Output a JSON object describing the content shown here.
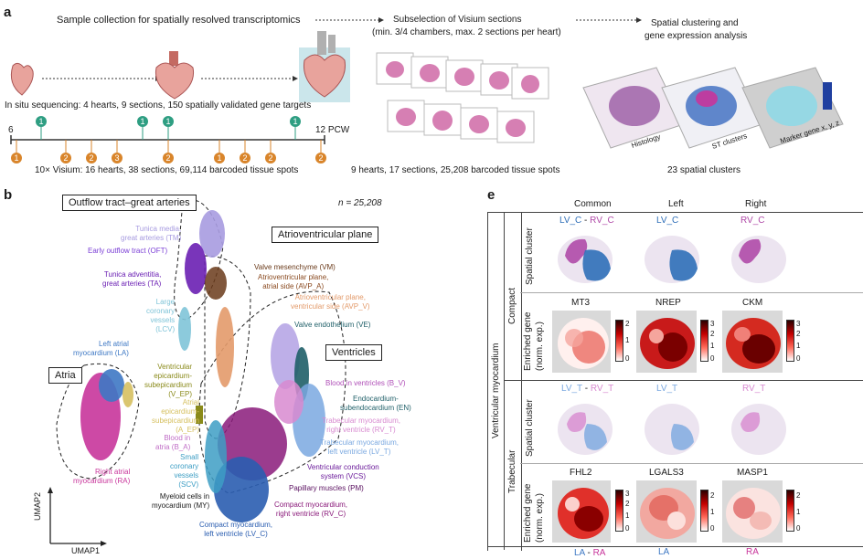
{
  "panel_a": {
    "letter": "a",
    "step1": "Sample collection for spatially resolved transcriptomics",
    "step2_line1": "Subselection of Visium sections",
    "step2_line2": "(min. 3/4 chambers, max. 2 sections per heart)",
    "step3_line1": "Spatial clustering and",
    "step3_line2": "gene expression analysis",
    "insitu": "In situ sequencing: 4 hearts, 9 sections, 150 spatially validated gene targets",
    "timeline_start": "6",
    "timeline_end": "12 PCW",
    "green_marks": [
      "1",
      "1",
      "1",
      "1"
    ],
    "orange_marks_top": [
      "1"
    ],
    "orange_marks_bottom": [
      "2",
      "2",
      "3",
      "2",
      "1",
      "2",
      "2",
      "2"
    ],
    "visium": "10× Visium: 16 hearts, 38 sections, 69,114 barcoded tissue spots",
    "subset": "9 hearts, 17 sections, 25,208 barcoded tissue spots",
    "clusters": "23 spatial clusters",
    "stack_labels": [
      "Histology",
      "ST clusters",
      "Marker gene x, y, z"
    ],
    "colors": {
      "green": "#2e9e82",
      "orange": "#d9852b",
      "heart": "#e8a39c",
      "vessel": "#a9d6dd"
    }
  },
  "panel_b": {
    "letter": "b",
    "n_label": "n = 25,208",
    "xaxis": "UMAP1",
    "yaxis": "UMAP2",
    "boxes": [
      "Outflow tract–great arteries",
      "Atrioventricular plane",
      "Ventricles",
      "Atria"
    ],
    "labels": [
      {
        "text": "Tunica media,\ngreat arteries (TM)",
        "color": "#a79be0"
      },
      {
        "text": "Early outflow tract (OFT)",
        "color": "#7b3fd6"
      },
      {
        "text": "Tunica adventitia,\ngreat arteries (TA)",
        "color": "#6a1fb3"
      },
      {
        "text": "Large\ncoronary\nvessels\n(LCV)",
        "color": "#7fc4d8"
      },
      {
        "text": "Left atrial\nmyocardium (LA)",
        "color": "#3e78c4"
      },
      {
        "text": "Valve mesenchyme (VM)",
        "color": "#6a3a1a"
      },
      {
        "text": "Atrioventricular plane,\natrial side (AVP_A)",
        "color": "#8a4a20"
      },
      {
        "text": "Atrioventricular plane,\nventricular side (AVP_V)",
        "color": "#e39a6a"
      },
      {
        "text": "Valve endothelium (VE)",
        "color": "#1f5f68"
      },
      {
        "text": "Ventricular\nepicardium-\nsubepicardium\n(V_EP)",
        "color": "#8a8a1a"
      },
      {
        "text": "Atrial\nepicardium-\nsubepicardium\n(A_EP)",
        "color": "#d6c060"
      },
      {
        "text": "Blood in\natria (B_A)",
        "color": "#c06ec6"
      },
      {
        "text": "Small\ncoronary\nvessels\n(SCV)",
        "color": "#3d9ec4"
      },
      {
        "text": "Right atrial\nmyocardium (RA)",
        "color": "#c8359b"
      },
      {
        "text": "Myeloid cells in\nmyocardium (MY)",
        "color": "#1a1a1a"
      },
      {
        "text": "Compact myocardium,\nleft ventricle (LV_C)",
        "color": "#2a5db0"
      },
      {
        "text": "Compact myocardium,\nright ventricle (RV_C)",
        "color": "#8a1a7a"
      },
      {
        "text": "Papillary muscles (PM)",
        "color": "#5a1060"
      },
      {
        "text": "Ventricular conduction\nsystem (VCS)",
        "color": "#6a1a9a"
      },
      {
        "text": "Trabecular myocardium,\nleft ventricle (LV_T)",
        "color": "#7aa8e0"
      },
      {
        "text": "Trabecular myocardium,\nright ventricle (RV_T)",
        "color": "#d88ad0"
      },
      {
        "text": "Endocardium-\nsubendocardium (EN)",
        "color": "#1f5f68"
      },
      {
        "text": "Blood in ventricles (B_V)",
        "color": "#b050b8"
      }
    ]
  },
  "panel_e": {
    "letter": "e",
    "col_headers": [
      "Common",
      "Left",
      "Right"
    ],
    "outer_label": "Ventricular myocardium",
    "group_compact": "Compact",
    "group_trabecular": "Trabecular",
    "row_spatial": "Spatial cluster",
    "row_enriched_1": "Enriched gene",
    "row_enriched_2": "(norm. exp.)",
    "compact_titles": [
      {
        "a": "LV_C",
        "sep": " - ",
        "b": "RV_C"
      },
      {
        "a": "LV_C",
        "sep": "",
        "b": ""
      },
      {
        "a": "",
        "sep": "",
        "b": "RV_C"
      }
    ],
    "compact_genes": [
      "MT3",
      "NREP",
      "CKM"
    ],
    "compact_ticks": [
      [
        "2",
        "1",
        "0"
      ],
      [
        "3",
        "2",
        "1",
        "0"
      ],
      [
        "3",
        "2",
        "1",
        "0"
      ]
    ],
    "trab_titles": [
      {
        "a": "LV_T",
        "sep": " - ",
        "b": "RV_T"
      },
      {
        "a": "LV_T",
        "sep": "",
        "b": ""
      },
      {
        "a": "",
        "sep": "",
        "b": "RV_T"
      }
    ],
    "trab_genes": [
      "FHL2",
      "LGALS3",
      "MASP1"
    ],
    "trab_ticks": [
      [
        "3",
        "2",
        "1",
        "0"
      ],
      [
        "2",
        "1",
        "0"
      ],
      [
        "2",
        "1",
        "0"
      ]
    ],
    "bottom_titles": [
      {
        "a": "LA",
        "sep": " - ",
        "b": "RA"
      },
      {
        "a": "LA",
        "sep": "",
        "b": ""
      },
      {
        "a": "",
        "sep": "",
        "b": "RA"
      }
    ],
    "colors": {
      "left": "#2f6fb8",
      "right": "#b04aa8"
    }
  }
}
